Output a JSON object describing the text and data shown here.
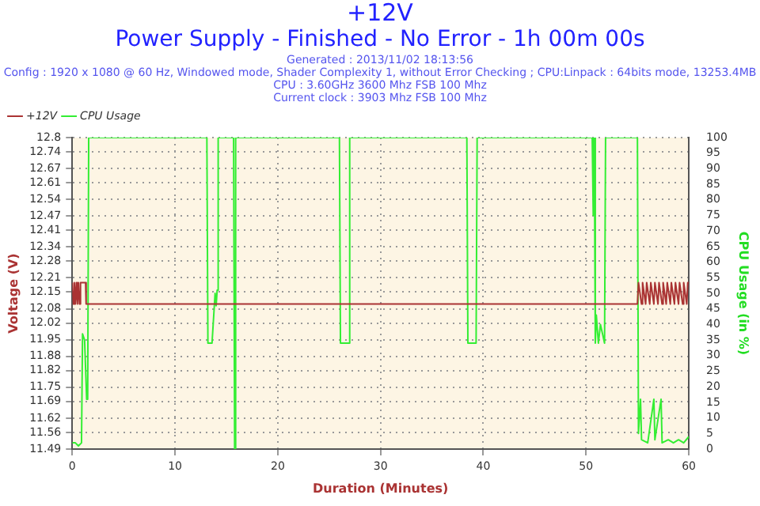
{
  "chart_data": {
    "type": "line",
    "title": "+12V",
    "subtitle": "Power Supply - Finished - No Error - 1h 00m 00s",
    "annotations": [
      "Generated : 2013/11/02 18:13:56",
      "Config : 1920 x 1080 @ 60 Hz, Windowed mode, Shader Complexity 1, without Error Checking ; CPU:Linpack : 64bits mode, 13253.4MB",
      "CPU : 3.60GHz 3600 Mhz FSB 100 Mhz",
      "Current clock : 3903 Mhz FSB 100 Mhz"
    ],
    "xlabel": "Duration (Minutes)",
    "ylabel": "Voltage (V)",
    "y2label": "CPU Usage (in %)",
    "series": [
      {
        "name": "+12V",
        "color": "#aa3333",
        "x": [
          0,
          0.1,
          0.2,
          0.3,
          0.4,
          0.5,
          0.6,
          0.7,
          0.8,
          0.9,
          1.3,
          1.35,
          55.0,
          55.1,
          55.4,
          55.5,
          55.8,
          55.9,
          56.2,
          56.3,
          56.6,
          56.7,
          57.0,
          57.1,
          57.4,
          57.5,
          57.8,
          57.9,
          58.2,
          58.3,
          58.6,
          58.7,
          59.0,
          59.1,
          59.4,
          59.5,
          59.8,
          59.9,
          60
        ],
        "values": [
          12.19,
          12.1,
          12.19,
          12.1,
          12.19,
          12.1,
          12.19,
          12.1,
          12.19,
          12.19,
          12.19,
          12.1,
          12.1,
          12.19,
          12.1,
          12.19,
          12.1,
          12.19,
          12.1,
          12.19,
          12.1,
          12.19,
          12.1,
          12.19,
          12.1,
          12.19,
          12.1,
          12.19,
          12.1,
          12.19,
          12.1,
          12.19,
          12.1,
          12.19,
          12.1,
          12.19,
          12.1,
          12.19,
          12.19
        ]
      },
      {
        "name": "CPU Usage",
        "color": "#33ee33",
        "axis": "y2",
        "x": [
          0,
          0.3,
          0.6,
          0.9,
          1.0,
          1.2,
          1.4,
          1.5,
          1.6,
          13.1,
          13.2,
          13.6,
          13.9,
          14.0,
          14.1,
          14.2,
          15.7,
          15.8,
          15.9,
          26.0,
          26.1,
          26.9,
          27.0,
          38.4,
          38.5,
          39.3,
          39.4,
          50.6,
          50.7,
          50.8,
          50.9,
          51.0,
          51.2,
          51.4,
          51.8,
          51.9,
          55.0,
          55.1,
          55.3,
          55.4,
          56.0,
          56.6,
          56.7,
          57.3,
          57.4,
          58.0,
          58.5,
          59.0,
          59.5,
          60
        ],
        "values": [
          2,
          2,
          1,
          2,
          37,
          35,
          16,
          16,
          100,
          100,
          34,
          34,
          50,
          46,
          51,
          100,
          100,
          0,
          100,
          100,
          34,
          34,
          100,
          100,
          34,
          34,
          100,
          100,
          75,
          100,
          34,
          43,
          34,
          40,
          34,
          100,
          100,
          5,
          16,
          3,
          2,
          16,
          3,
          16,
          2,
          3,
          2,
          3,
          2,
          4
        ]
      }
    ],
    "xlim": [
      0,
      60
    ],
    "xticks": [
      0,
      10,
      20,
      30,
      40,
      50,
      60
    ],
    "ylim": [
      11.49,
      12.8
    ],
    "yticks": [
      11.49,
      11.56,
      11.62,
      11.69,
      11.75,
      11.82,
      11.88,
      11.95,
      12.02,
      12.08,
      12.15,
      12.21,
      12.28,
      12.34,
      12.41,
      12.47,
      12.54,
      12.61,
      12.67,
      12.74,
      12.8
    ],
    "y2lim": [
      0,
      100
    ],
    "y2ticks": [
      0,
      5,
      10,
      15,
      20,
      25,
      30,
      35,
      40,
      45,
      50,
      55,
      60,
      65,
      70,
      75,
      80,
      85,
      90,
      95,
      100
    ],
    "grid": true,
    "legend": "top left",
    "marker": "none",
    "line_style": "solid"
  }
}
